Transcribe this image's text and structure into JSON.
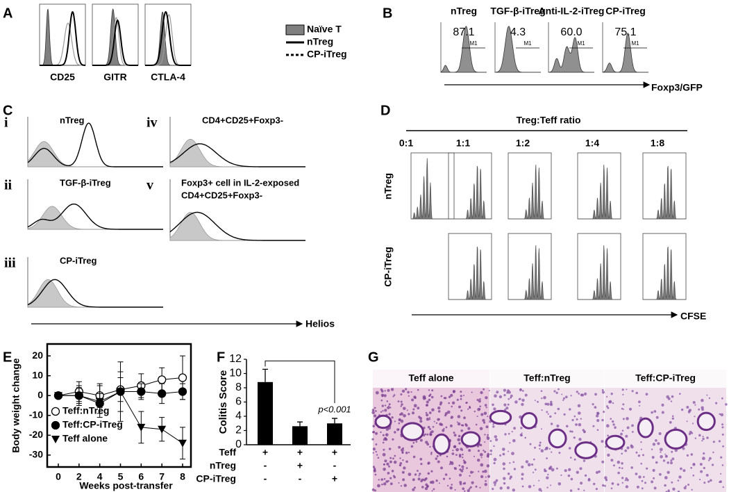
{
  "figure": {
    "A": {
      "label": "A",
      "markers": [
        "CD25",
        "GITR",
        "CTLA-4"
      ],
      "legend": [
        "Naïve T",
        "nTreg",
        "CP-iTreg"
      ]
    },
    "B": {
      "label": "B",
      "populations": [
        "nTreg",
        "TGF-β-iTreg",
        "Anti-IL-2-iTreg",
        "CP-iTreg"
      ],
      "percentages": [
        "87.1",
        "4.3",
        "60.0",
        "75.1"
      ],
      "gate": "M1",
      "axis_label": "Foxp3/GFP"
    },
    "C": {
      "label": "C",
      "panels": [
        {
          "numeral": "i",
          "title_lines": [
            "nTreg"
          ]
        },
        {
          "numeral": "ii",
          "title_lines": [
            "TGF-β-iTreg"
          ]
        },
        {
          "numeral": "iii",
          "title_lines": [
            "CP-iTreg"
          ]
        },
        {
          "numeral": "iv",
          "title_lines": [
            "CD4+CD25+Foxp3-"
          ]
        },
        {
          "numeral": "v",
          "title_lines": [
            "Foxp3+ cell in IL-2-exposed",
            "CD4+CD25+Foxp3-"
          ]
        }
      ],
      "axis_label": "Helios"
    },
    "D": {
      "label": "D",
      "header": "Treg:Teff ratio",
      "ratios": [
        "0:1",
        "1:1",
        "1:2",
        "1:4",
        "1:8"
      ],
      "rows": [
        "nTreg",
        "CP-iTreg"
      ],
      "axis_label": "CFSE"
    },
    "E": {
      "label": "E"
    },
    "F": {
      "label": "F"
    },
    "G": {
      "label": "G",
      "images": [
        "Teff alone",
        "Teff:nTreg",
        "Teff:CP-iTreg"
      ]
    }
  },
  "chart_data": [
    {
      "type": "line",
      "categories": [
        "0",
        "2",
        "4",
        "5",
        "6",
        "7",
        "8"
      ],
      "ylabel": "Body weight change",
      "xlabel": "Weeks post-transfer",
      "ylim": [
        -36,
        26
      ],
      "yticks": [
        -30,
        -20,
        -10,
        0,
        10,
        20
      ],
      "legend": "lower left",
      "series": [
        {
          "name": "Teff:nTreg",
          "marker": "open-circle",
          "color": "#000000",
          "values": [
            0,
            2,
            0,
            3,
            5,
            8,
            9
          ],
          "errors": [
            1,
            5,
            6,
            6,
            6,
            6,
            11
          ]
        },
        {
          "name": "Teff:CP-iTreg",
          "marker": "circle",
          "color": "#000000",
          "values": [
            0,
            0,
            -4,
            2,
            2,
            1,
            2
          ],
          "errors": [
            1,
            4,
            5,
            10,
            4,
            5,
            4
          ]
        },
        {
          "name": "Teff alone",
          "marker": "triangle-down",
          "color": "#000000",
          "values": [
            0,
            0,
            -3,
            2,
            -16,
            -17,
            -24
          ],
          "errors": [
            1,
            5,
            8,
            15,
            8,
            6,
            8
          ]
        }
      ]
    },
    {
      "type": "bar",
      "ylabel": "Colitis Score",
      "values": [
        8.8,
        2.6,
        3.0
      ],
      "errors": [
        1.8,
        0.6,
        0.7
      ],
      "color": "#000000",
      "ylim": [
        0,
        12
      ],
      "yticks": [
        0,
        2,
        4,
        6,
        8,
        10,
        12
      ],
      "annotation": "p<0.001",
      "conditions": [
        {
          "name": "Teff",
          "signs": [
            "+",
            "+",
            "+"
          ]
        },
        {
          "name": "nTreg",
          "signs": [
            "-",
            "+",
            "-"
          ]
        },
        {
          "name": "CP-iTreg",
          "signs": [
            "-",
            "-",
            "+"
          ]
        }
      ]
    }
  ]
}
